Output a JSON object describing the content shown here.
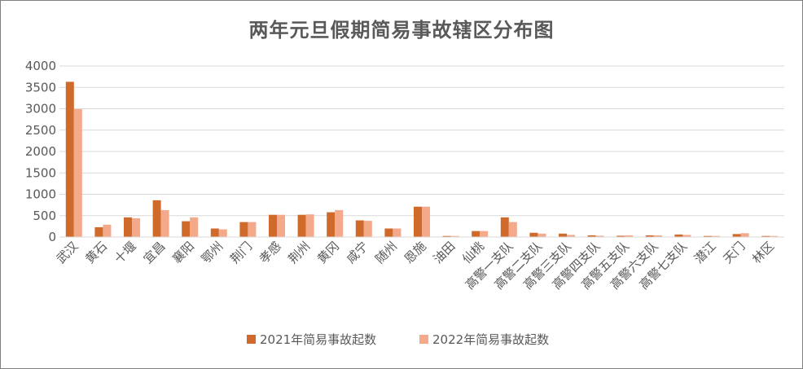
{
  "chart_data": {
    "type": "bar",
    "title": "两年元旦假期简易事故辖区分布图",
    "xlabel": "",
    "ylabel": "",
    "ylim": [
      0,
      4000
    ],
    "yticks": [
      0,
      500,
      1000,
      1500,
      2000,
      2500,
      3000,
      3500,
      4000
    ],
    "grid": true,
    "legend_position": "bottom",
    "categories": [
      "武汉",
      "黄石",
      "十堰",
      "宜昌",
      "襄阳",
      "鄂州",
      "荆门",
      "孝感",
      "荆州",
      "黄冈",
      "咸宁",
      "随州",
      "恩施",
      "油田",
      "仙桃",
      "高警一支队",
      "高警二支队",
      "高警三支队",
      "高警四支队",
      "高警五支队",
      "高警六支队",
      "高警七支队",
      "潜江",
      "天门",
      "林区"
    ],
    "series": [
      {
        "name": "2021年简易事故起数",
        "color": "#d06a2a",
        "values": [
          3630,
          230,
          460,
          860,
          370,
          200,
          350,
          520,
          520,
          580,
          390,
          200,
          710,
          25,
          140,
          460,
          100,
          80,
          40,
          30,
          40,
          60,
          25,
          70,
          25
        ]
      },
      {
        "name": "2022年简易事故起数",
        "color": "#f4a98a",
        "values": [
          2990,
          290,
          440,
          630,
          460,
          180,
          350,
          520,
          530,
          630,
          380,
          200,
          710,
          25,
          140,
          350,
          80,
          50,
          30,
          40,
          40,
          50,
          25,
          90,
          25
        ]
      }
    ]
  }
}
